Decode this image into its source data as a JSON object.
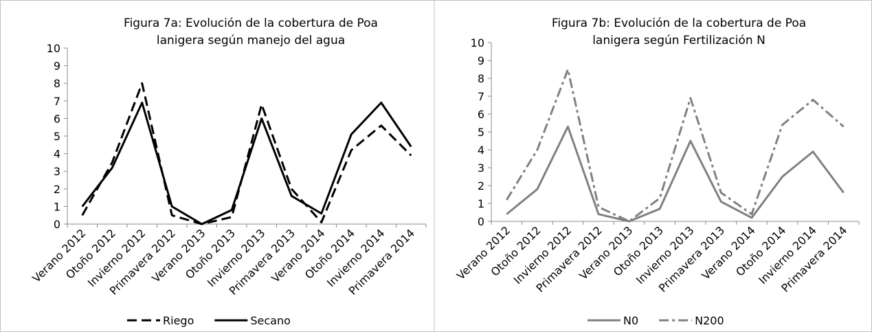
{
  "chart_data": [
    {
      "type": "line",
      "title": "Figura 7a: Evolución de la cobertura de Poa lanigera según manejo del agua",
      "categories": [
        "Verano 2012",
        "Otoño 2012",
        "Invierno 2012",
        "Primavera 2012",
        "Verano 2013",
        "Otoño 2013",
        "Invierno 2013",
        "Primavera 2013",
        "Verano 2014",
        "Otoño 2014",
        "Invierno 2014",
        "Primavera 2014"
      ],
      "series": [
        {
          "name": "Riego",
          "color": "#000000",
          "dash": "dashed",
          "values": [
            0.5,
            3.5,
            8,
            0.5,
            0,
            0.4,
            6.8,
            2,
            0.1,
            4.2,
            5.6,
            3.9
          ]
        },
        {
          "name": "Secano",
          "color": "#000000",
          "dash": "solid",
          "values": [
            1,
            3.2,
            6.9,
            1,
            0,
            0.8,
            6,
            1.6,
            0.6,
            5.1,
            6.9,
            4.4
          ]
        }
      ],
      "ylim": [
        0,
        10
      ],
      "yticks": [
        0,
        1,
        2,
        3,
        4,
        5,
        6,
        7,
        8,
        9,
        10
      ],
      "grid": false,
      "legend": "bottom"
    },
    {
      "type": "line",
      "title": "Figura 7b: Evolución de la cobertura de Poa lanigera según Fertilización N",
      "categories": [
        "Verano 2012",
        "Otoño 2012",
        "Invierno 2012",
        "Primavera 2012",
        "Verano 2013",
        "Otoño 2013",
        "Invierno 2013",
        "Primavera 2013",
        "Verano 2014",
        "Otoño 2014",
        "Invierno 2014",
        "Primavera 2014"
      ],
      "series": [
        {
          "name": "N0",
          "color": "#808080",
          "dash": "solid",
          "values": [
            0.4,
            1.8,
            5.3,
            0.4,
            0,
            0.7,
            4.5,
            1.1,
            0.2,
            2.5,
            3.9,
            1.6
          ]
        },
        {
          "name": "N200",
          "color": "#808080",
          "dash": "dashdot",
          "values": [
            1.2,
            4,
            8.5,
            0.8,
            0,
            1.3,
            6.9,
            1.6,
            0.4,
            5.4,
            6.8,
            5.3
          ]
        }
      ],
      "ylim": [
        0,
        10
      ],
      "yticks": [
        0,
        1,
        2,
        3,
        4,
        5,
        6,
        7,
        8,
        9,
        10
      ],
      "grid": false,
      "legend": "bottom"
    }
  ]
}
